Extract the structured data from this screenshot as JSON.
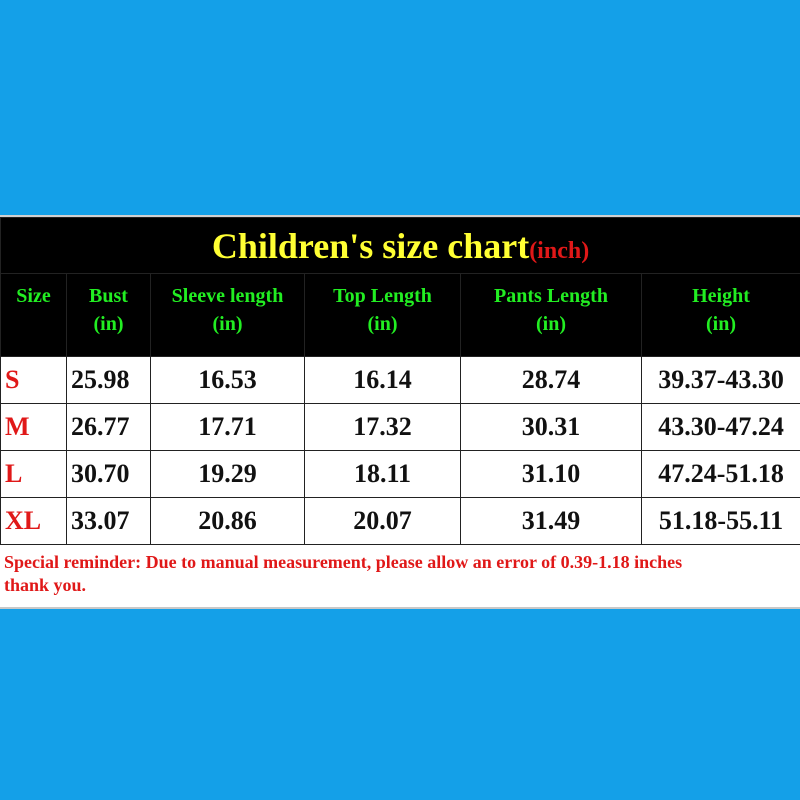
{
  "title": {
    "text": "Children's size chart",
    "unit": "(inch)"
  },
  "table": {
    "header": [
      {
        "label": "Size"
      },
      {
        "label": "Bust",
        "unit": "(in)"
      },
      {
        "label": "Sleeve length",
        "unit": "(in)"
      },
      {
        "label": "Top Length",
        "unit": "(in)"
      },
      {
        "label": "Pants Length",
        "unit": "(in)"
      },
      {
        "label": "Height",
        "unit": "(in)"
      }
    ],
    "rows": [
      [
        "S",
        "25.98",
        "16.53",
        "16.14",
        "28.74",
        "39.37-43.30"
      ],
      [
        "M",
        "26.77",
        "17.71",
        "17.32",
        "30.31",
        "43.30-47.24"
      ],
      [
        "L",
        "30.70",
        "19.29",
        "18.11",
        "31.10",
        "47.24-51.18"
      ],
      [
        "XL",
        "33.07",
        "20.86",
        "20.07",
        "31.49",
        "51.18-55.11"
      ]
    ]
  },
  "reminder": [
    "Special reminder: Due to manual measurement, please allow an error of 0.39-1.18 inches",
    "thank you."
  ]
}
